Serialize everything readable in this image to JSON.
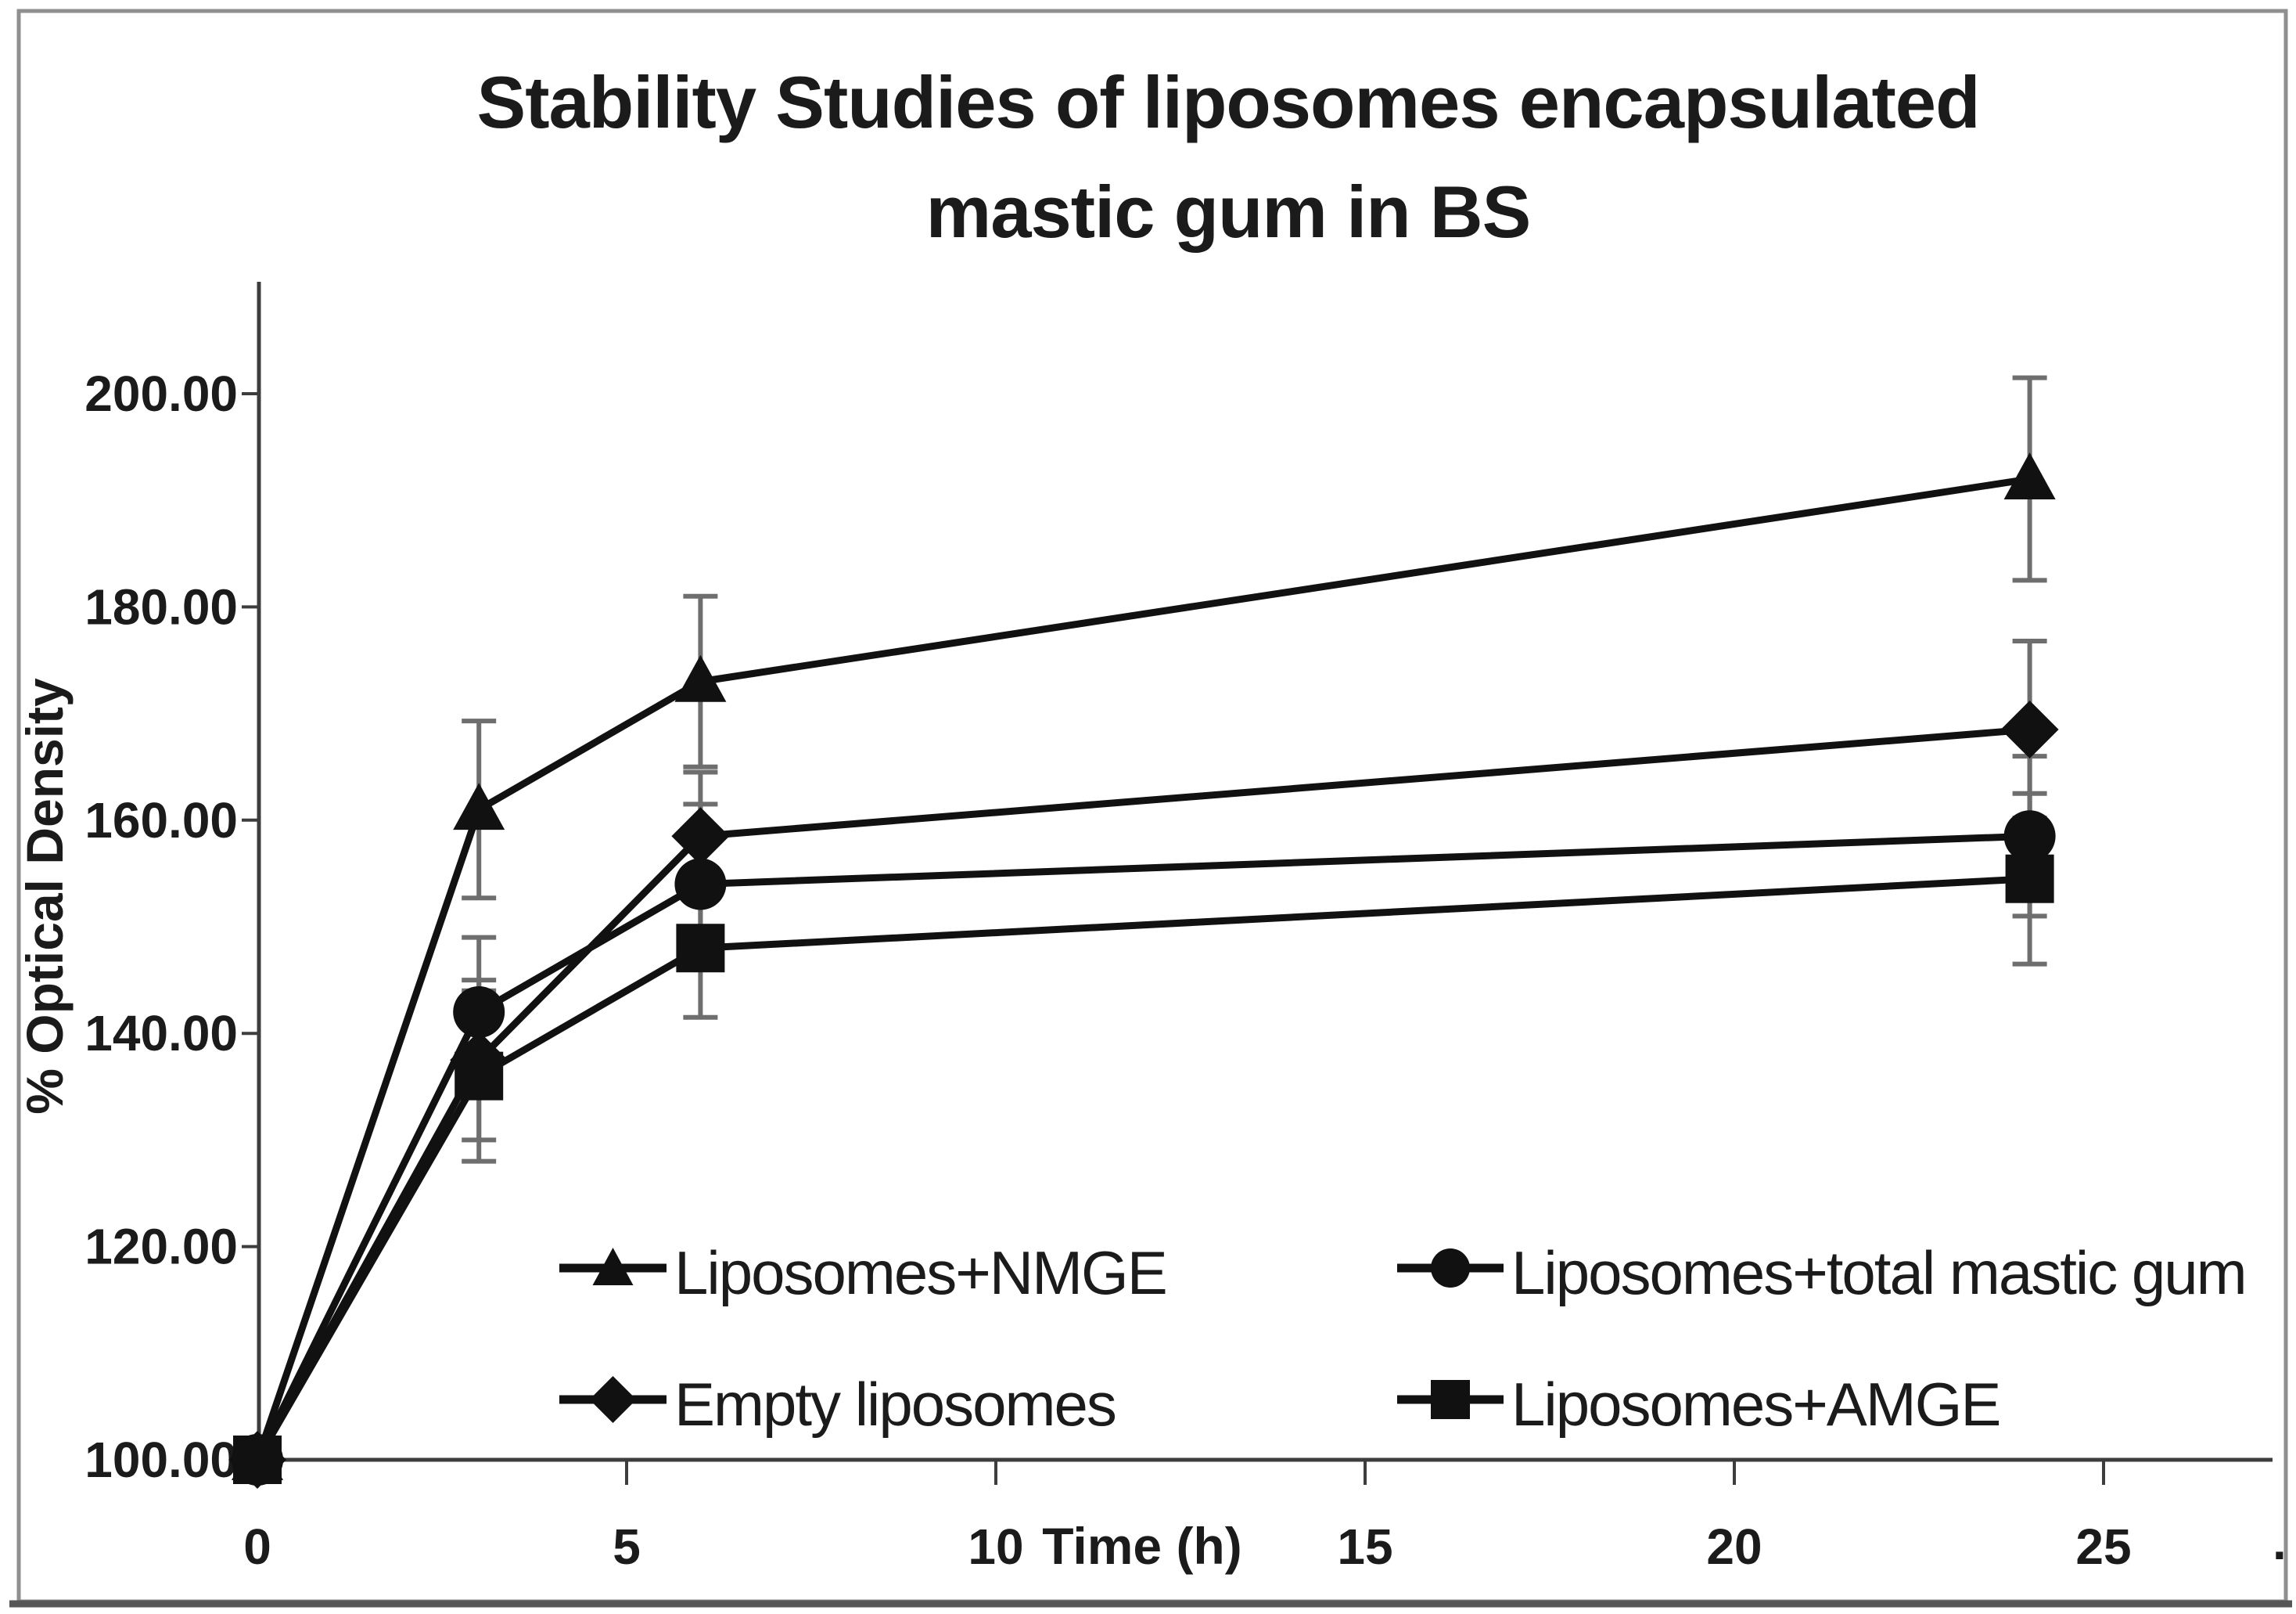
{
  "figure": {
    "title_line1": "Stability Studies of liposomes encapsulated",
    "title_line2": "mastic gum in BS",
    "trailing_period": "."
  },
  "chart_data": {
    "type": "line",
    "title": "Stability Studies of liposomes encapsulated mastic gum in BS",
    "xlabel": "Time (h)",
    "ylabel": "% Optical Density",
    "x": [
      0,
      3,
      6,
      24
    ],
    "xlim": [
      0,
      25
    ],
    "ylim": [
      100,
      200
    ],
    "grid": false,
    "xticks": [
      0,
      5,
      10,
      15,
      20,
      25
    ],
    "xtick_labels": [
      "0",
      "5",
      "10",
      "15",
      "20",
      "25"
    ],
    "ytick_values": [
      100,
      120,
      140,
      160,
      180,
      200
    ],
    "ytick_labels": [
      "100.00",
      "120.00",
      "140.00",
      "160.00",
      "180.00",
      "200.00"
    ],
    "series_color": "#111111",
    "error_bar_color": "#6e6e6e",
    "axis_color": "#3d3d3d",
    "series": [
      {
        "name": "Liposomes+NMGE",
        "marker": "triangle",
        "values": [
          100,
          161,
          173,
          192
        ],
        "errors": [
          2,
          8.3,
          8,
          9.5
        ]
      },
      {
        "name": "Liposomes+total mastic gum",
        "marker": "circle",
        "values": [
          100,
          142,
          154,
          158.5
        ],
        "errors": [
          2,
          7,
          7.5,
          7.5
        ]
      },
      {
        "name": "Empty liposomes",
        "marker": "diamond",
        "values": [
          100,
          137.5,
          158.5,
          168.5
        ],
        "errors": [
          2,
          7.5,
          6,
          8.3
        ]
      },
      {
        "name": "Liposomes+AMGE",
        "marker": "square",
        "values": [
          100,
          136,
          148,
          154.5
        ],
        "errors": [
          2,
          8,
          6.5,
          8
        ]
      }
    ],
    "legend": {
      "position": "inside-bottom",
      "items": [
        {
          "label": "Liposomes+NMGE",
          "marker": "triangle",
          "column": 0,
          "row": 0
        },
        {
          "label": "Liposomes+total mastic gum",
          "marker": "circle",
          "column": 1,
          "row": 0
        },
        {
          "label": "Empty liposomes",
          "marker": "diamond",
          "column": 0,
          "row": 1
        },
        {
          "label": "Liposomes+AMGE",
          "marker": "square",
          "column": 1,
          "row": 1
        }
      ]
    }
  }
}
